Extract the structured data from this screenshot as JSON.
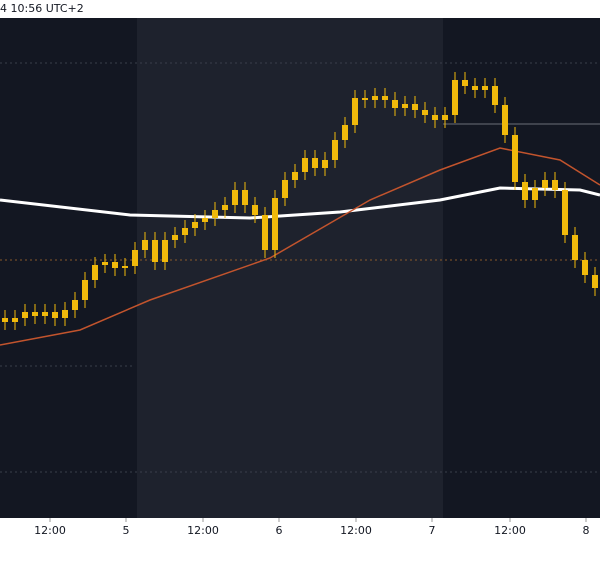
{
  "header_text": "4 10:56 UTC+2",
  "chart_data": {
    "type": "candlestick",
    "xlim": [
      -0.5,
      59.5
    ],
    "ylim": [
      0,
      100
    ],
    "xticks": [
      {
        "value": 4.5,
        "label": "12:00"
      },
      {
        "value": 12.1,
        "label": "5"
      },
      {
        "value": 19.8,
        "label": "12:00"
      },
      {
        "value": 27.4,
        "label": "6"
      },
      {
        "value": 35.1,
        "label": "12:00"
      },
      {
        "value": 42.7,
        "label": "7"
      },
      {
        "value": 50.5,
        "label": "12:00"
      },
      {
        "value": 58.1,
        "label": "8"
      }
    ],
    "candle_color": "#f0b90b",
    "open": [
      40,
      39.2,
      40,
      41.2,
      40.4,
      41.2,
      40,
      41.6,
      43.6,
      47.6,
      50.6,
      51.2,
      50,
      50.4,
      53.6,
      55.6,
      51.2,
      55.6,
      56.6,
      58,
      59.2,
      60,
      61.6,
      62.6,
      65.6,
      62.6,
      60.6,
      53.6,
      64,
      67.6,
      69.2,
      72,
      70,
      71.6,
      75.6,
      78.6,
      84,
      83.6,
      84.4,
      83.6,
      82,
      82.8,
      81.6,
      80.6,
      79.6,
      80.6,
      87.6,
      86.4,
      85.6,
      86.4,
      82.6,
      76.6,
      67.2,
      63.6,
      66,
      67.6,
      65.6,
      56.6,
      51.6,
      48.6
    ],
    "high": [
      41.6,
      41.6,
      42.8,
      42.8,
      42.8,
      42.8,
      43.2,
      45.2,
      49.2,
      52.2,
      52.8,
      52.8,
      52,
      55.2,
      57.2,
      57.2,
      57.2,
      58.2,
      59.6,
      60.8,
      61.6,
      63.2,
      64.2,
      67.2,
      67.2,
      64.2,
      62.2,
      65.6,
      69.2,
      70.8,
      73.6,
      73.6,
      73.2,
      77.2,
      80.2,
      85.6,
      85.6,
      86,
      86,
      85.2,
      84.4,
      84.4,
      83.2,
      82.2,
      82.2,
      89.2,
      89.2,
      88,
      88,
      88,
      84.2,
      78.2,
      68.8,
      67.6,
      69.2,
      69.2,
      67.2,
      58.2,
      53.2,
      50.2
    ],
    "low": [
      37.6,
      37.6,
      38.4,
      38.8,
      38.8,
      38.4,
      38.4,
      40,
      42,
      46,
      49,
      48.4,
      48.4,
      48.8,
      52,
      49.6,
      49.6,
      54,
      55,
      56.4,
      57.6,
      58.4,
      60,
      61,
      61,
      59,
      52,
      52,
      62.4,
      66,
      67.6,
      68.4,
      68.4,
      70,
      74,
      77,
      82,
      82,
      82,
      80.4,
      80.4,
      80,
      79,
      78,
      78,
      79,
      84.8,
      84,
      84,
      81,
      75,
      65.6,
      62,
      62,
      64.4,
      64,
      55,
      50,
      47,
      44.4
    ],
    "close": [
      39.2,
      40,
      41.2,
      40.4,
      41.2,
      40,
      41.6,
      43.6,
      47.6,
      50.6,
      51.2,
      50,
      50.4,
      53.6,
      55.6,
      51.2,
      55.6,
      56.6,
      58,
      59.2,
      60,
      61.6,
      62.6,
      65.6,
      62.6,
      60.6,
      53.6,
      64,
      67.6,
      69.2,
      72,
      70,
      71.6,
      75.6,
      78.6,
      84,
      83.6,
      84.4,
      83.6,
      82,
      82.8,
      81.6,
      80.6,
      79.6,
      80.6,
      87.6,
      86.4,
      85.6,
      86.4,
      82.6,
      76.6,
      67.2,
      63.6,
      66,
      67.6,
      65.6,
      56.6,
      51.6,
      48.6,
      46
    ],
    "lines": [
      {
        "color": "#ffffff",
        "width": 3,
        "x": [
          -0.5,
          12.5,
          24.5,
          33.5,
          43.5,
          49.5,
          57.5,
          59.5
        ],
        "values": [
          63.6,
          60.6,
          60,
          61.2,
          63.6,
          66,
          65.6,
          64.6
        ]
      },
      {
        "color": "#c2542d",
        "width": 1.5,
        "x": [
          -0.5,
          7.5,
          14.5,
          26.5,
          36.5,
          43.5,
          49.5,
          55.5,
          59.5
        ],
        "values": [
          34.6,
          37.6,
          43.6,
          52,
          63.6,
          69.6,
          74,
          71.6,
          66.6
        ]
      }
    ],
    "levels": [
      {
        "value": 91,
        "color": "#3a3f4b",
        "dash": true,
        "x": [
          -0.5,
          59.5
        ]
      },
      {
        "value": 9.2,
        "color": "#3a3f4b",
        "dash": true,
        "x": [
          -0.5,
          59.5
        ]
      },
      {
        "value": 30.4,
        "color": "#3a3f4b",
        "dash": true,
        "x": [
          -0.5,
          13
        ]
      },
      {
        "value": 51.6,
        "color": "#8a5a2b",
        "dash": true,
        "x": [
          -0.5,
          59.5
        ]
      },
      {
        "value": 78.8,
        "color": "#6b6f78",
        "dash": false,
        "x": [
          43.8,
          59.5
        ]
      }
    ]
  }
}
